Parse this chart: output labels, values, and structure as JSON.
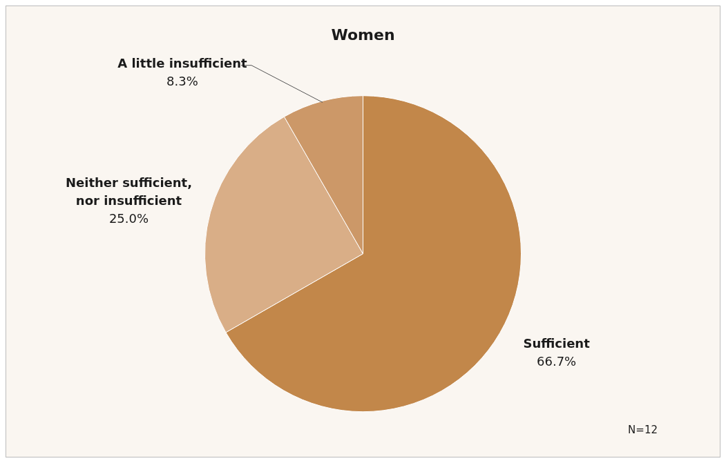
{
  "chart_data": {
    "type": "pie",
    "title": "Women",
    "categories": [
      "Sufficient",
      "Neither sufficient,\nnor insufficient",
      "A little insufficient"
    ],
    "values": [
      66.7,
      25.0,
      8.3
    ],
    "value_labels": [
      "66.7%",
      "25.0%",
      "8.3%"
    ],
    "colors": [
      "#c2874a",
      "#d9ae87",
      "#cc9868"
    ],
    "legend": false,
    "annotations": [
      "N=12"
    ]
  }
}
